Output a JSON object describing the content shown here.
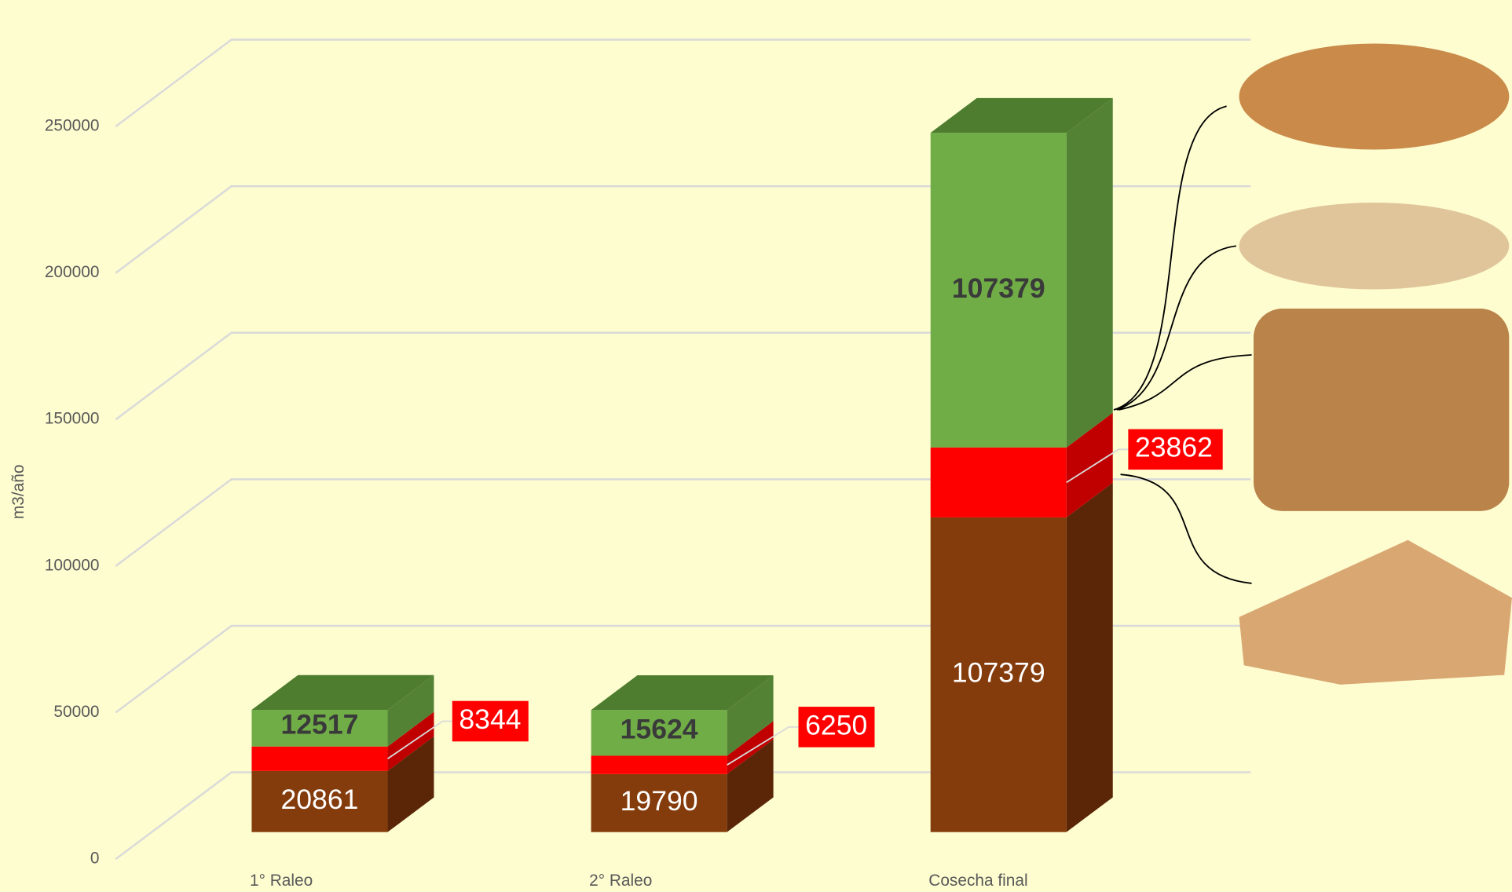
{
  "chart_data": {
    "type": "bar3d_stacked",
    "y_label": "m3/año",
    "categories": [
      "1° Raleo",
      "2° Raleo",
      "Cosecha final"
    ],
    "series": [
      {
        "color": "#843c0c",
        "values": [
          20861,
          19790,
          107379
        ]
      },
      {
        "color": "#ff0000",
        "values": [
          8344,
          6250,
          23862
        ]
      },
      {
        "color": "#70ad47",
        "values": [
          12517,
          15624,
          107379
        ]
      }
    ],
    "ylim": [
      0,
      250000
    ],
    "yticks": [
      0,
      50000,
      100000,
      150000,
      200000,
      250000
    ],
    "grid": true
  }
}
